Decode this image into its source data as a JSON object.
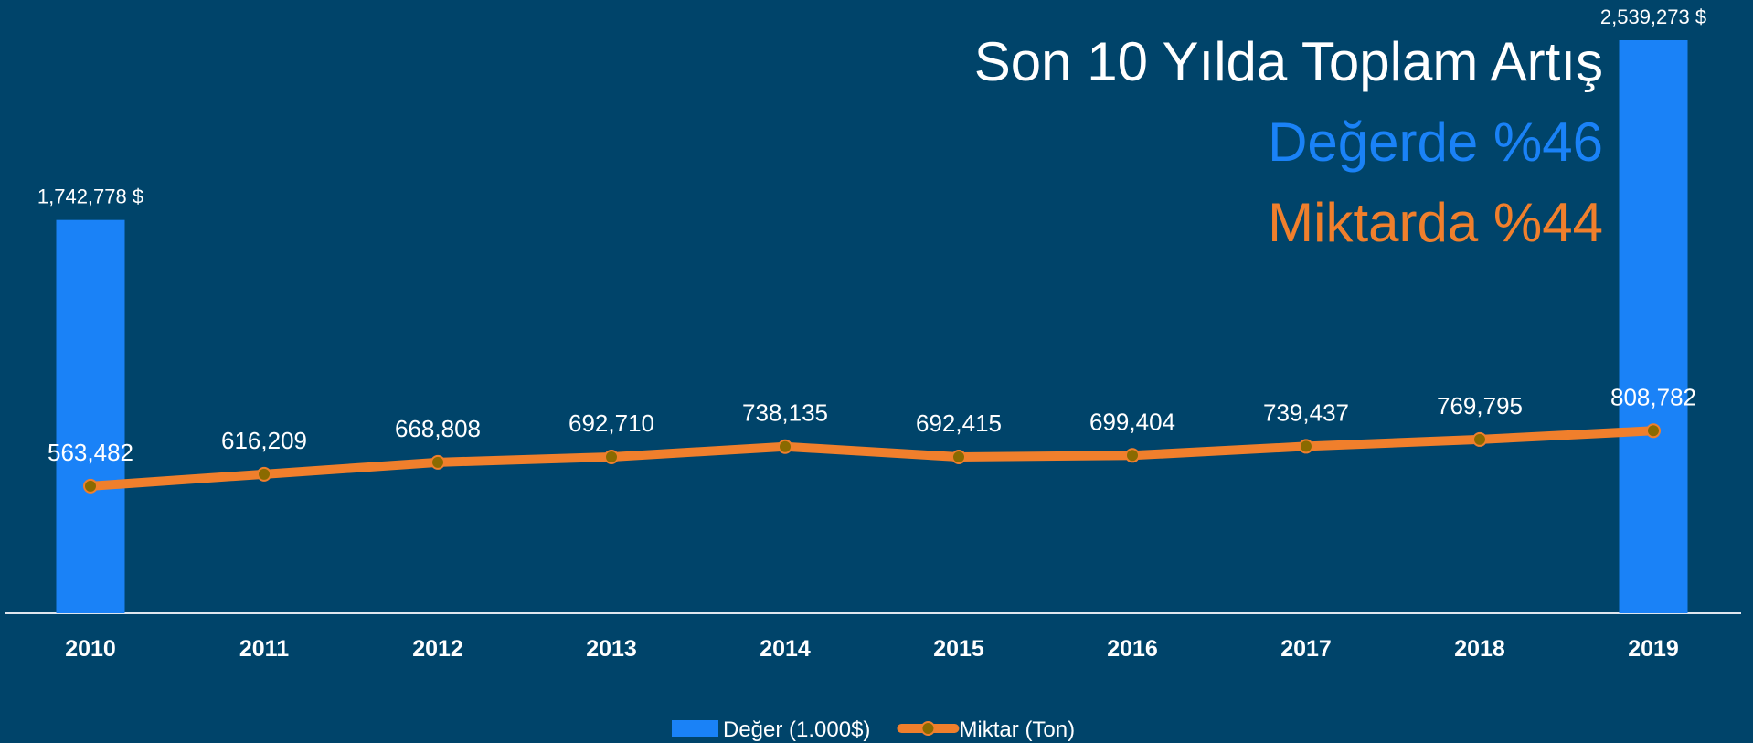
{
  "chart_data": {
    "type": "combo",
    "title": "Son 10 Yılda Toplam Artış",
    "annotations": [
      {
        "text": "Değerde %46",
        "color": "#1a82f7"
      },
      {
        "text": "Miktarda %44",
        "color": "#f07f2c"
      }
    ],
    "categories": [
      "2010",
      "2011",
      "2012",
      "2013",
      "2014",
      "2015",
      "2016",
      "2017",
      "2018",
      "2019"
    ],
    "series": [
      {
        "name": "Değer (1.000$)",
        "type": "bar",
        "color": "#1a82f7",
        "values": [
          1742778,
          null,
          null,
          null,
          null,
          null,
          null,
          null,
          null,
          2539273
        ],
        "value_labels": [
          "1,742,778 $",
          null,
          null,
          null,
          null,
          null,
          null,
          null,
          null,
          "2,539,273 $"
        ]
      },
      {
        "name": "Miktar (Ton)",
        "type": "line",
        "axis": "y2",
        "color": "#f07f2c",
        "marker_color": "#8a6a00",
        "values": [
          563482,
          616209,
          668808,
          692710,
          738135,
          692415,
          699404,
          739437,
          769795,
          808782
        ],
        "value_labels": [
          "563,482",
          "616,209",
          "668,808",
          "692,710",
          "738,135",
          "692,415",
          "699,404",
          "739,437",
          "769,795",
          "808,782"
        ]
      }
    ],
    "ylim": [
      0,
      2600000
    ],
    "y2lim": [
      0,
      2600000
    ],
    "legend": "bottom"
  }
}
